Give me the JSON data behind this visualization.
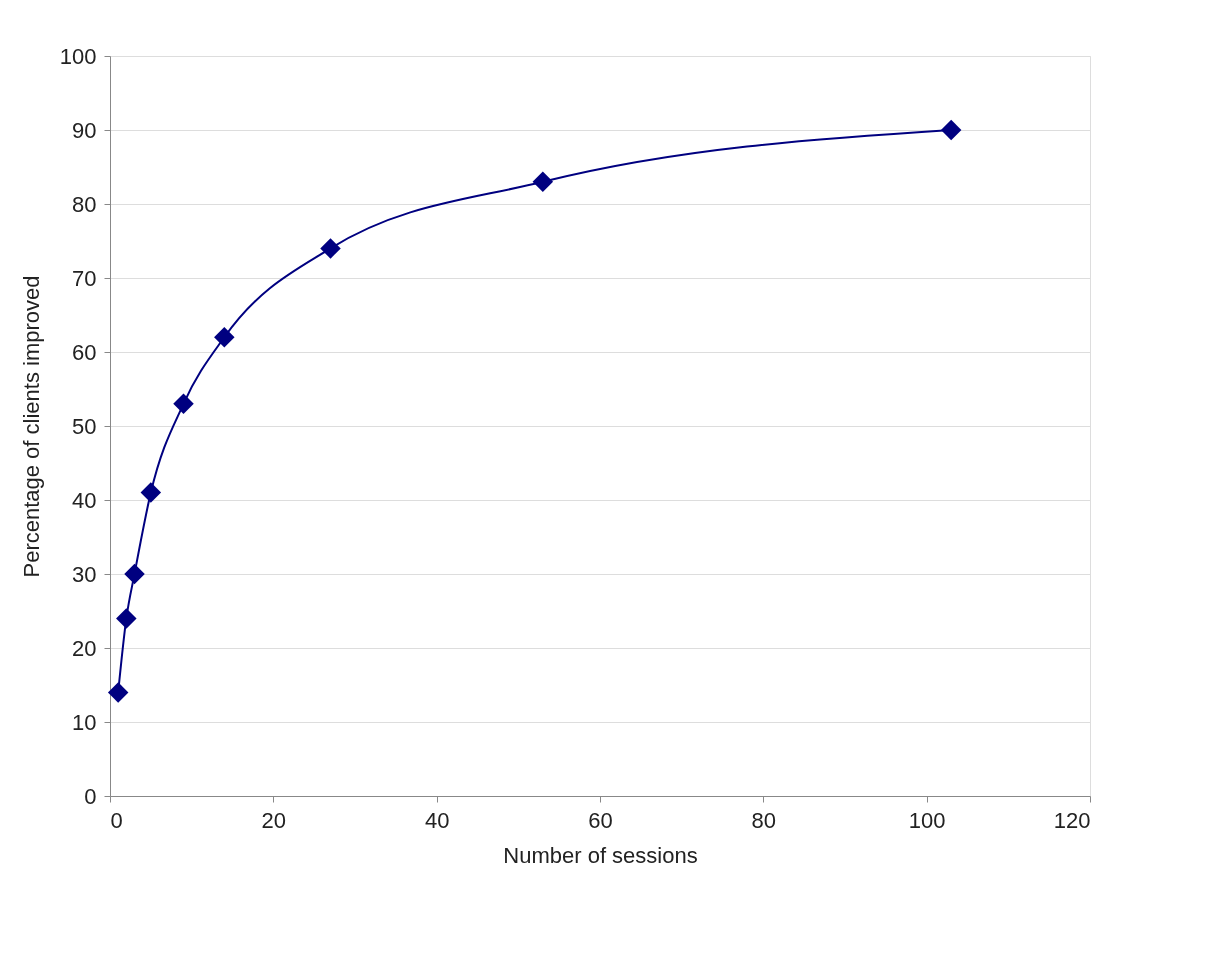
{
  "chart_data": {
    "type": "line",
    "xlabel": "Number of sessions",
    "ylabel": "Percentage of clients improved",
    "x": [
      1,
      2,
      3,
      5,
      9,
      14,
      27,
      53,
      103
    ],
    "series": [
      {
        "color": "#000080",
        "values": [
          14,
          24,
          30,
          41,
          53,
          62,
          74,
          83,
          90
        ]
      }
    ],
    "xlim": [
      0,
      120
    ],
    "xticks": [
      0,
      20,
      40,
      60,
      80,
      100,
      120
    ],
    "ylim": [
      0,
      100
    ],
    "yticks": [
      0,
      10,
      20,
      30,
      40,
      50,
      60,
      70,
      80,
      90,
      100
    ],
    "grid": "y",
    "marker": "diamond",
    "line_style": "solid"
  }
}
